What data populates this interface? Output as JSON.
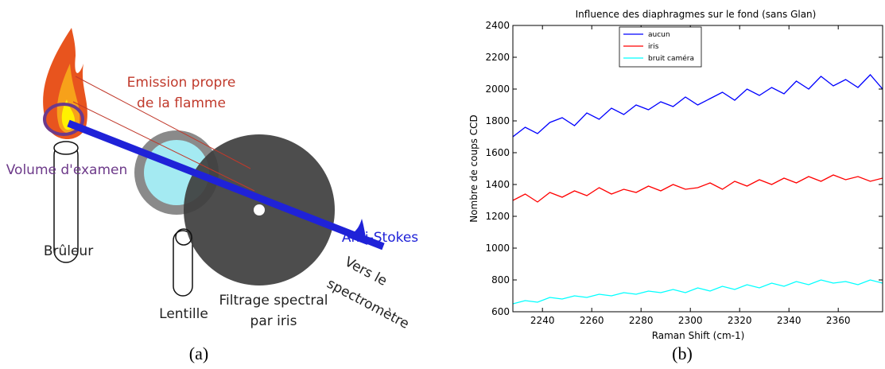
{
  "diagram": {
    "labels": {
      "emission": [
        "Emission propre",
        "de la flamme"
      ],
      "volume": "Volume d'examen",
      "burner": "Brûleur",
      "lens": "Lentille",
      "filter": [
        "Filtrage spectral",
        "par iris"
      ],
      "antistokes": "Anti-Stokes",
      "toward": [
        "Vers le",
        "spectromètre"
      ]
    },
    "caption": "(a)"
  },
  "chart_data": {
    "type": "line",
    "title": "Influence des diaphragmes sur le fond (sans Glan)",
    "x_label": "Raman Shift (cm-1)",
    "y_label": "Nombre de coups CCD",
    "caption": "(b)",
    "x": [
      2228,
      2233,
      2238,
      2243,
      2248,
      2253,
      2258,
      2263,
      2268,
      2273,
      2278,
      2283,
      2288,
      2293,
      2298,
      2303,
      2308,
      2313,
      2318,
      2323,
      2328,
      2333,
      2338,
      2343,
      2348,
      2353,
      2358,
      2363,
      2368,
      2373,
      2378
    ],
    "series": [
      {
        "name": "aucun",
        "color": "#0000ff",
        "values": [
          1700,
          1760,
          1720,
          1790,
          1820,
          1770,
          1850,
          1810,
          1880,
          1840,
          1900,
          1870,
          1920,
          1890,
          1950,
          1900,
          1940,
          1980,
          1930,
          2000,
          1960,
          2010,
          1970,
          2050,
          2000,
          2080,
          2020,
          2060,
          2010,
          2090,
          2000
        ]
      },
      {
        "name": "iris",
        "color": "#ff0000",
        "values": [
          1300,
          1340,
          1290,
          1350,
          1320,
          1360,
          1330,
          1380,
          1340,
          1370,
          1350,
          1390,
          1360,
          1400,
          1370,
          1380,
          1410,
          1370,
          1420,
          1390,
          1430,
          1400,
          1440,
          1410,
          1450,
          1420,
          1460,
          1430,
          1450,
          1420,
          1440
        ]
      },
      {
        "name": "bruit caméra",
        "color": "#00ffff",
        "values": [
          650,
          670,
          660,
          690,
          680,
          700,
          690,
          710,
          700,
          720,
          710,
          730,
          720,
          740,
          720,
          750,
          730,
          760,
          740,
          770,
          750,
          780,
          760,
          790,
          770,
          800,
          780,
          790,
          770,
          800,
          780
        ]
      }
    ],
    "xlim": [
      2228,
      2378
    ],
    "ylim": [
      600,
      2400
    ],
    "xticks": [
      2240,
      2260,
      2280,
      2300,
      2320,
      2340,
      2360
    ],
    "yticks": [
      600,
      800,
      1000,
      1200,
      1400,
      1600,
      1800,
      2000,
      2200,
      2400
    ],
    "legend": "upper-left"
  }
}
